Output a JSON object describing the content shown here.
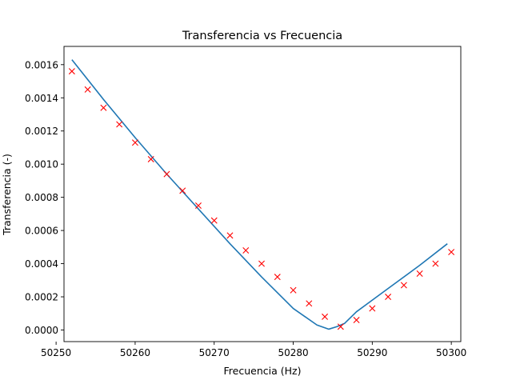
{
  "chart_data": {
    "type": "line",
    "title": "Transferencia vs Frecuencia",
    "xlabel": "Frecuencia (Hz)",
    "ylabel": "Transferencia (-)",
    "xlim": [
      50251.0,
      50301.2
    ],
    "ylim": [
      -7e-05,
      0.00171
    ],
    "grid": false,
    "legend": "none",
    "x_ticks": [
      50250,
      50260,
      50270,
      50280,
      50290,
      50300
    ],
    "x_tick_labels": [
      "50250",
      "50260",
      "50270",
      "50280",
      "50290",
      "50300"
    ],
    "y_ticks": [
      0.0,
      0.0002,
      0.0004,
      0.0006,
      0.0008,
      0.001,
      0.0012,
      0.0014,
      0.0016
    ],
    "y_tick_labels": [
      "0.0000",
      "0.0002",
      "0.0004",
      "0.0006",
      "0.0008",
      "0.0010",
      "0.0012",
      "0.0014",
      "0.0016"
    ],
    "series": [
      {
        "style": "line",
        "color": "#1f77b4",
        "x": [
          50252.0,
          50256.0,
          50260.0,
          50264.0,
          50268.0,
          50272.0,
          50276.0,
          50280.0,
          50283.0,
          50284.5,
          50285.5,
          50286.5,
          50288.0,
          50292.0,
          50296.0,
          50299.5
        ],
        "y": [
          0.00163,
          0.00139,
          0.00116,
          0.00094,
          0.00073,
          0.00052,
          0.00032,
          0.00013,
          3e-05,
          5e-06,
          2e-05,
          4e-05,
          0.00011,
          0.00025,
          0.00039,
          0.00052
        ]
      },
      {
        "style": "marker-x",
        "color": "#ff0000",
        "x": [
          50252,
          50254,
          50256,
          50258,
          50260,
          50262,
          50264,
          50266,
          50268,
          50270,
          50272,
          50274,
          50276,
          50278,
          50280,
          50282,
          50284,
          50286,
          50288,
          50290,
          50292,
          50294,
          50296,
          50298,
          50300
        ],
        "y": [
          0.00156,
          0.00145,
          0.00134,
          0.00124,
          0.00113,
          0.00103,
          0.00094,
          0.00084,
          0.00075,
          0.00066,
          0.00057,
          0.00048,
          0.0004,
          0.00032,
          0.00024,
          0.00016,
          8e-05,
          2e-05,
          6e-05,
          0.00013,
          0.0002,
          0.00027,
          0.00034,
          0.0004,
          0.00047
        ]
      }
    ]
  }
}
